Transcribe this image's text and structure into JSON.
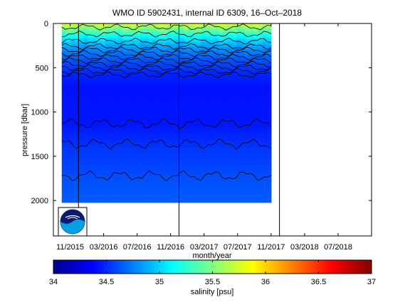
{
  "chart_data": {
    "type": "heatmap",
    "title": "WMO ID 5902431, internal ID 6309, 16–Oct–2018",
    "xlabel": "month/year",
    "ylabel": "pressure [dbar]",
    "x_ticks": [
      "11/2015",
      "03/2016",
      "07/2016",
      "11/2016",
      "03/2017",
      "07/2017",
      "11/2017",
      "03/2018",
      "07/2018"
    ],
    "y_ticks": [
      "0",
      "500",
      "1000",
      "1500",
      "2000"
    ],
    "y_tick_values": [
      0,
      500,
      1000,
      1500,
      2000
    ],
    "ylim": [
      2400,
      0
    ],
    "y_reversed": true,
    "xlim": [
      "2015-09",
      "2018-11"
    ],
    "data_x_range": [
      "2015-10",
      "2017-11"
    ],
    "data_max_pressure": 2000,
    "vertical_lines": [
      "2015-12",
      "2016-12",
      "2017-12"
    ],
    "contour_depths": [
      {
        "label": "shallow contours",
        "depths": [
          40,
          120,
          200,
          260,
          300,
          340,
          380,
          420,
          460,
          500,
          540,
          580
        ]
      },
      {
        "label": "deep contours",
        "depths": [
          1130,
          1360,
          1720
        ]
      }
    ],
    "colorbar": {
      "label": "salinity [psu]",
      "range": [
        34,
        37
      ],
      "ticks": [
        "34",
        "34.5",
        "35",
        "35.5",
        "36",
        "36.5",
        "37"
      ],
      "colormap": "jet"
    },
    "profile_salinity": [
      {
        "pressure": 0,
        "salinity": 35.7
      },
      {
        "pressure": 60,
        "salinity": 35.45
      },
      {
        "pressure": 130,
        "salinity": 35.15
      },
      {
        "pressure": 200,
        "salinity": 34.95
      },
      {
        "pressure": 300,
        "salinity": 34.75
      },
      {
        "pressure": 420,
        "salinity": 34.6
      },
      {
        "pressure": 560,
        "salinity": 34.48
      },
      {
        "pressure": 700,
        "salinity": 34.42
      },
      {
        "pressure": 1130,
        "salinity": 34.44
      },
      {
        "pressure": 1360,
        "salinity": 34.52
      },
      {
        "pressure": 1720,
        "salinity": 34.6
      },
      {
        "pressure": 2000,
        "salinity": 34.65
      }
    ]
  },
  "logo": {
    "name": "noaa-logo"
  }
}
